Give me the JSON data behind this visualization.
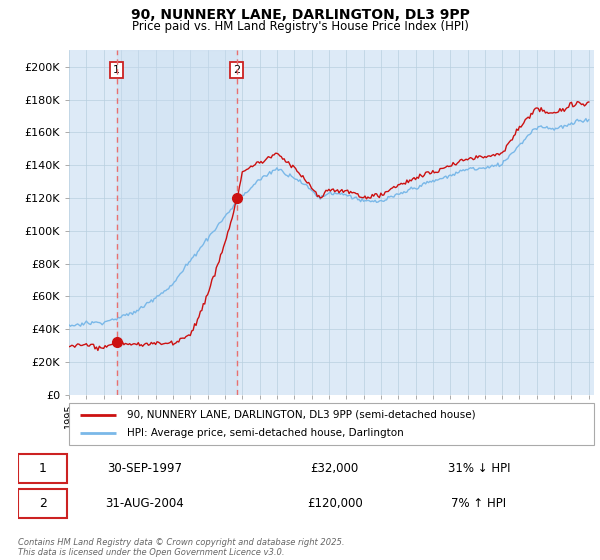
{
  "title1": "90, NUNNERY LANE, DARLINGTON, DL3 9PP",
  "title2": "Price paid vs. HM Land Registry's House Price Index (HPI)",
  "ylabel_ticks": [
    "£0",
    "£20K",
    "£40K",
    "£60K",
    "£80K",
    "£100K",
    "£120K",
    "£140K",
    "£160K",
    "£180K",
    "£200K"
  ],
  "ytick_values": [
    0,
    20000,
    40000,
    60000,
    80000,
    100000,
    120000,
    140000,
    160000,
    180000,
    200000
  ],
  "ylim": [
    0,
    210000
  ],
  "xlim_start": 1995.3,
  "xlim_end": 2025.3,
  "sale1_date": 1997.75,
  "sale1_price": 32000,
  "sale2_date": 2004.67,
  "sale2_price": 120000,
  "hpi_color": "#7ab8e8",
  "price_color": "#cc1111",
  "dashed_line_color": "#e87070",
  "bg_color": "#ddeaf7",
  "plot_bg": "#ffffff",
  "grid_color": "#b8cfe0",
  "legend_line1": "90, NUNNERY LANE, DARLINGTON, DL3 9PP (semi-detached house)",
  "legend_line2": "HPI: Average price, semi-detached house, Darlington",
  "table_row1_num": "1",
  "table_row1_date": "30-SEP-1997",
  "table_row1_price": "£32,000",
  "table_row1_hpi": "31% ↓ HPI",
  "table_row2_num": "2",
  "table_row2_date": "31-AUG-2004",
  "table_row2_price": "£120,000",
  "table_row2_hpi": "7% ↑ HPI",
  "footnote": "Contains HM Land Registry data © Crown copyright and database right 2025.\nThis data is licensed under the Open Government Licence v3.0."
}
